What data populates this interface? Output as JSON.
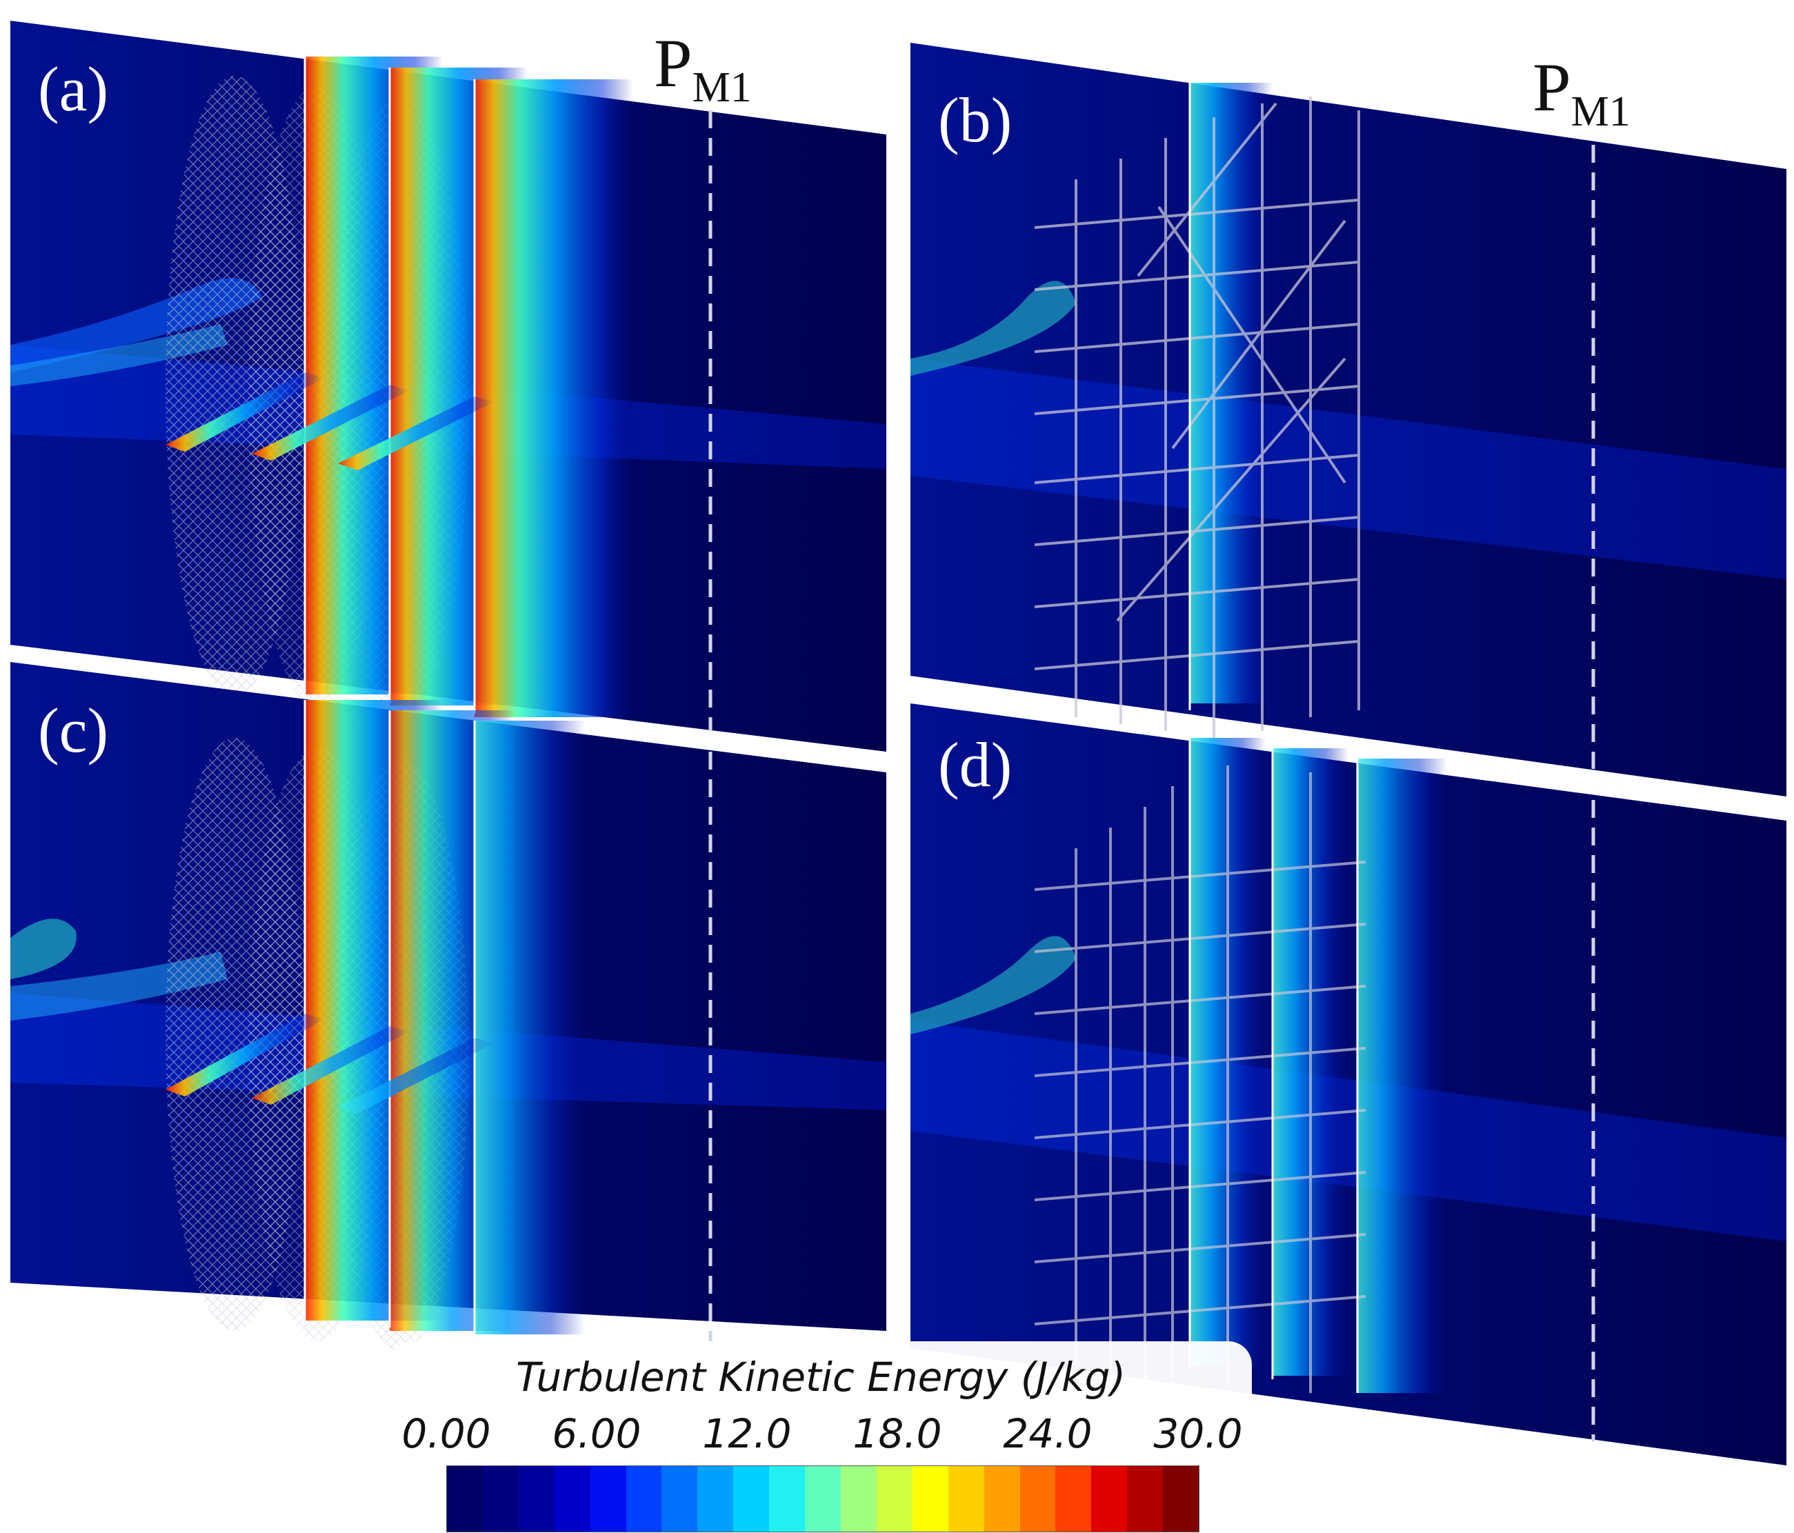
{
  "panels": [
    {
      "label": "(a)",
      "marker": {
        "text": "P",
        "sub": "M1"
      }
    },
    {
      "label": "(b)",
      "marker": {
        "text": "P",
        "sub": "M1"
      }
    },
    {
      "label": "(c)",
      "marker": null
    },
    {
      "label": "(d)",
      "marker": null
    }
  ],
  "legend": {
    "title": "Turbulent Kinetic Energy (J/kg)",
    "ticks": [
      "0.00",
      "6.00",
      "12.0",
      "18.0",
      "24.0",
      "30.0"
    ],
    "min": 0,
    "max": 30,
    "colors": [
      "#000066",
      "#00007f",
      "#00009f",
      "#0000c8",
      "#0010f0",
      "#0040ff",
      "#0070ff",
      "#00a0ff",
      "#00d0ff",
      "#20f0f0",
      "#60ffc0",
      "#a0ff80",
      "#d0ff40",
      "#ffff00",
      "#ffd000",
      "#ffa000",
      "#ff7000",
      "#ff4000",
      "#e00000",
      "#b00000",
      "#800000"
    ]
  },
  "colors": {
    "domain_dark": "#00004a",
    "domain_mid": "#000a8c",
    "jet": "#0a60ff",
    "mesh": "#d8d8e8"
  }
}
